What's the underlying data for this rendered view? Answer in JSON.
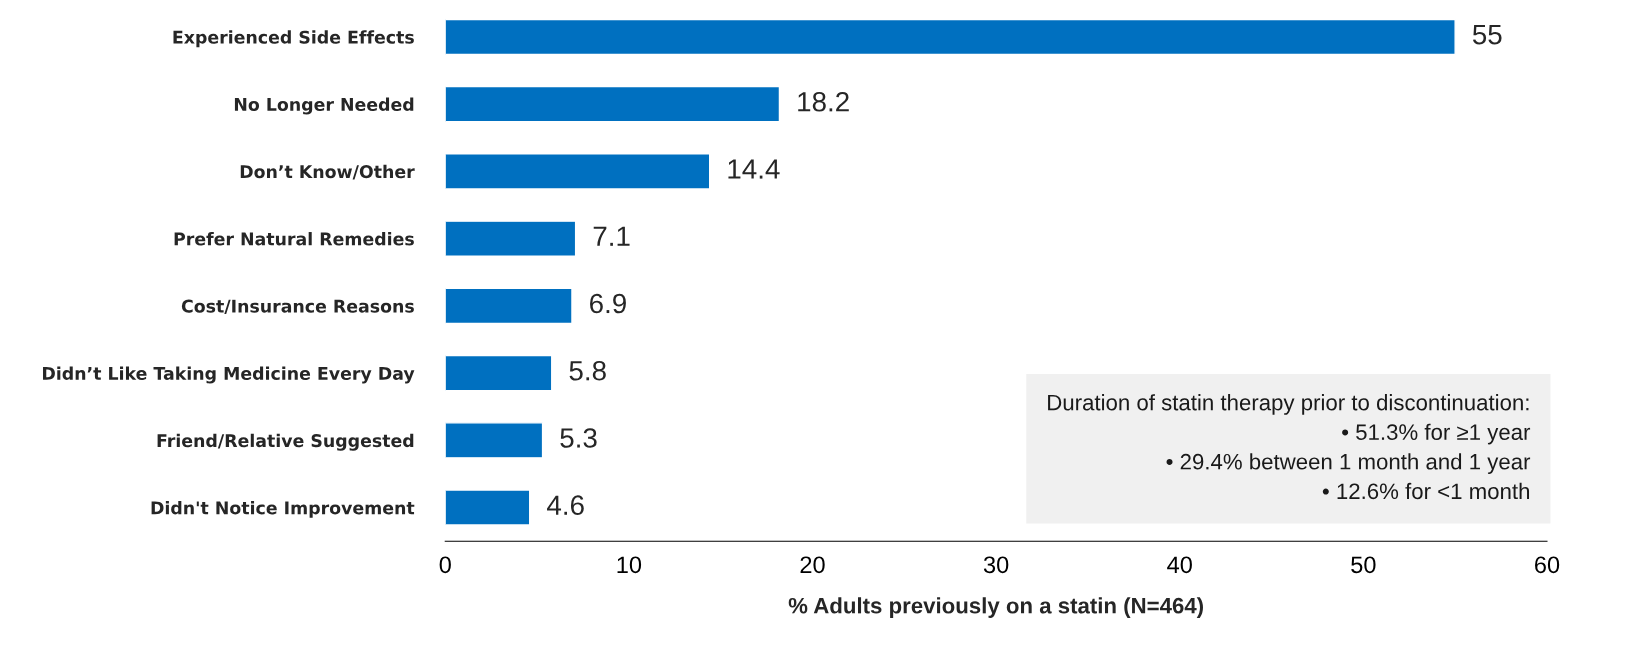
{
  "chart_data": {
    "type": "bar",
    "orientation": "horizontal",
    "categories": [
      "Experienced Side Effects",
      "No Longer Needed",
      "Don’t Know/Other",
      "Prefer Natural Remedies",
      "Cost/Insurance Reasons",
      "Didn’t Like Taking Medicine Every Day",
      "Friend/Relative Suggested",
      "Didn't Notice Improvement"
    ],
    "values": [
      55,
      18.2,
      14.4,
      7.1,
      6.9,
      5.8,
      5.3,
      4.6
    ],
    "color": "#0070c0",
    "xlabel": "% Adults previously on a statin (N=464)",
    "xlim": [
      0,
      60
    ],
    "xticks": [
      0,
      10,
      20,
      30,
      40,
      50,
      60
    ],
    "data_labels": true,
    "grid": false,
    "legend": false,
    "annotations": [
      "Duration of statin therapy prior to discontinuation:",
      "• 51.3% for ≥1 year",
      "• 29.4% between 1 month and 1 year",
      "• 12.6% for <1 month"
    ]
  }
}
